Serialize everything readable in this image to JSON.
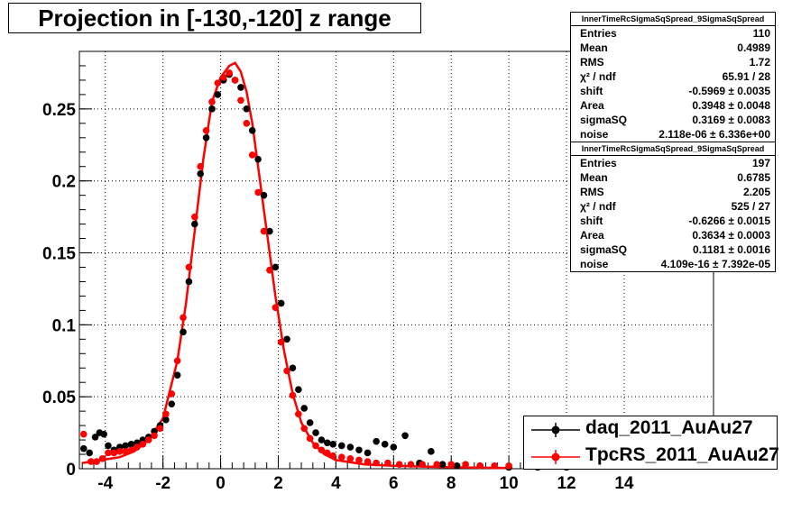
{
  "title": "Projection in [-130,-120] z range",
  "stats": [
    {
      "header": "InnerTimeRcSigmaSqSpread_9SigmaSqSpread",
      "rows": [
        {
          "label": "Entries",
          "value": "110"
        },
        {
          "label": "Mean",
          "value": "0.4989"
        },
        {
          "label": "RMS",
          "value": "1.72"
        },
        {
          "label": "χ² / ndf",
          "value": "65.91 / 28"
        },
        {
          "label": "shift",
          "value": "-0.5969 ± 0.0035"
        },
        {
          "label": "Area",
          "value": "0.3948 ± 0.0048"
        },
        {
          "label": "sigmaSQ",
          "value": "0.3169 ± 0.0083"
        },
        {
          "label": "noise",
          "value": "2.118e-06 ± 6.336e+00"
        }
      ]
    },
    {
      "header": "InnerTimeRcSigmaSqSpread_9SigmaSqSpread",
      "rows": [
        {
          "label": "Entries",
          "value": "197"
        },
        {
          "label": "Mean",
          "value": "0.6785"
        },
        {
          "label": "RMS",
          "value": "2.205"
        },
        {
          "label": "χ² / ndf",
          "value": "525 / 27"
        },
        {
          "label": "shift",
          "value": "-0.6266 ± 0.0015"
        },
        {
          "label": "Area",
          "value": "0.3634 ± 0.0003"
        },
        {
          "label": "sigmaSQ",
          "value": "0.1181 ± 0.0016"
        },
        {
          "label": "noise",
          "value": "4.109e-16 ± 7.392e-05"
        }
      ]
    }
  ],
  "legend": [
    {
      "label": "daq_2011_AuAu27",
      "color": "#000000"
    },
    {
      "label": "TpcRS_2011_AuAu27",
      "color": "#ff0000"
    }
  ],
  "chart_data": {
    "type": "scatter",
    "xlim": [
      -4.9,
      17.1
    ],
    "ylim": [
      0,
      0.29
    ],
    "x_ticks": [
      -4,
      -2,
      0,
      2,
      4,
      6,
      8,
      10,
      12,
      14
    ],
    "x_tick_labels": [
      "-4",
      "-2",
      "0",
      "2",
      "4",
      "6",
      "8",
      "10",
      "12",
      "14"
    ],
    "y_ticks": [
      0,
      0.05,
      0.1,
      0.15,
      0.2,
      0.25
    ],
    "y_tick_labels": [
      "0",
      "0.05",
      "0.1",
      "0.15",
      "0.2",
      "0.25"
    ],
    "grid": true,
    "legend_position": "bottom-right",
    "series": [
      {
        "name": "daq_2011_AuAu27",
        "color": "#000000",
        "points": [
          [
            -4.75,
            0.014
          ],
          [
            -4.55,
            0.011
          ],
          [
            -4.35,
            0.022
          ],
          [
            -4.2,
            0.025
          ],
          [
            -4.05,
            0.024
          ],
          [
            -3.9,
            0.016
          ],
          [
            -3.7,
            0.013
          ],
          [
            -3.5,
            0.015
          ],
          [
            -3.3,
            0.016
          ],
          [
            -3.1,
            0.017
          ],
          [
            -2.9,
            0.018
          ],
          [
            -2.7,
            0.02
          ],
          [
            -2.5,
            0.022
          ],
          [
            -2.3,
            0.026
          ],
          [
            -2.1,
            0.03
          ],
          [
            -1.9,
            0.034
          ],
          [
            -1.7,
            0.045
          ],
          [
            -1.5,
            0.065
          ],
          [
            -1.3,
            0.095
          ],
          [
            -1.1,
            0.13
          ],
          [
            -0.9,
            0.17
          ],
          [
            -0.7,
            0.205
          ],
          [
            -0.5,
            0.23
          ],
          [
            -0.3,
            0.25
          ],
          [
            -0.1,
            0.26
          ],
          [
            0.1,
            0.27
          ],
          [
            0.3,
            0.274
          ],
          [
            0.5,
            0.27
          ],
          [
            0.7,
            0.265
          ],
          [
            0.9,
            0.25
          ],
          [
            1.1,
            0.235
          ],
          [
            1.3,
            0.215
          ],
          [
            1.5,
            0.19
          ],
          [
            1.7,
            0.165
          ],
          [
            1.9,
            0.14
          ],
          [
            2.1,
            0.115
          ],
          [
            2.3,
            0.09
          ],
          [
            2.5,
            0.07
          ],
          [
            2.7,
            0.055
          ],
          [
            2.9,
            0.042
          ],
          [
            3.1,
            0.032
          ],
          [
            3.3,
            0.025
          ],
          [
            3.5,
            0.02
          ],
          [
            3.7,
            0.018
          ],
          [
            3.9,
            0.017
          ],
          [
            4.2,
            0.016
          ],
          [
            4.5,
            0.015
          ],
          [
            4.8,
            0.013
          ],
          [
            5.1,
            0.011
          ],
          [
            5.4,
            0.019
          ],
          [
            5.7,
            0.017
          ],
          [
            6.0,
            0.015
          ],
          [
            6.4,
            0.023
          ],
          [
            6.9,
            0.004
          ],
          [
            7.3,
            0.012
          ],
          [
            7.7,
            0.003
          ],
          [
            8.2,
            0.002
          ],
          [
            9.0,
            0.002
          ],
          [
            10.0,
            0.001
          ],
          [
            11.0,
            0.001
          ],
          [
            12.0,
            0.001
          ]
        ]
      },
      {
        "name": "TpcRS_2011_AuAu27",
        "color": "#ff0000",
        "points": [
          [
            -4.75,
            0.024
          ],
          [
            -4.5,
            0.005
          ],
          [
            -4.3,
            0.005
          ],
          [
            -4.1,
            0.007
          ],
          [
            -3.9,
            0.011
          ],
          [
            -3.7,
            0.011
          ],
          [
            -3.5,
            0.012
          ],
          [
            -3.3,
            0.012
          ],
          [
            -3.1,
            0.013
          ],
          [
            -2.9,
            0.015
          ],
          [
            -2.7,
            0.017
          ],
          [
            -2.5,
            0.02
          ],
          [
            -2.3,
            0.023
          ],
          [
            -2.1,
            0.028
          ],
          [
            -1.9,
            0.038
          ],
          [
            -1.7,
            0.052
          ],
          [
            -1.5,
            0.075
          ],
          [
            -1.3,
            0.105
          ],
          [
            -1.1,
            0.14
          ],
          [
            -0.9,
            0.175
          ],
          [
            -0.7,
            0.21
          ],
          [
            -0.5,
            0.235
          ],
          [
            -0.3,
            0.255
          ],
          [
            -0.1,
            0.268
          ],
          [
            0.1,
            0.272
          ],
          [
            0.3,
            0.275
          ],
          [
            0.5,
            0.27
          ],
          [
            0.7,
            0.256
          ],
          [
            0.9,
            0.24
          ],
          [
            1.1,
            0.218
          ],
          [
            1.3,
            0.192
          ],
          [
            1.5,
            0.165
          ],
          [
            1.7,
            0.138
          ],
          [
            1.9,
            0.112
          ],
          [
            2.1,
            0.088
          ],
          [
            2.3,
            0.068
          ],
          [
            2.5,
            0.051
          ],
          [
            2.7,
            0.038
          ],
          [
            2.9,
            0.028
          ],
          [
            3.1,
            0.021
          ],
          [
            3.3,
            0.016
          ],
          [
            3.5,
            0.013
          ],
          [
            3.7,
            0.011
          ],
          [
            3.9,
            0.009
          ],
          [
            4.2,
            0.008
          ],
          [
            4.5,
            0.007
          ],
          [
            4.8,
            0.006
          ],
          [
            5.1,
            0.005
          ],
          [
            5.4,
            0.004
          ],
          [
            5.8,
            0.004
          ],
          [
            6.2,
            0.003
          ],
          [
            6.6,
            0.003
          ],
          [
            7.0,
            0.003
          ],
          [
            7.5,
            0.003
          ],
          [
            8.0,
            0.003
          ],
          [
            8.5,
            0.003
          ],
          [
            9.0,
            0.002
          ],
          [
            9.5,
            0.002
          ],
          [
            10.0,
            0.002
          ],
          [
            11.0,
            0.002
          ]
        ]
      },
      {
        "name": "",
        "color": "#ff0000",
        "type": "line",
        "points": [
          [
            -4.8,
            0.004
          ],
          [
            -3.5,
            0.008
          ],
          [
            -3.0,
            0.012
          ],
          [
            -2.5,
            0.02
          ],
          [
            -2.0,
            0.035
          ],
          [
            -1.5,
            0.075
          ],
          [
            -1.2,
            0.115
          ],
          [
            -0.9,
            0.165
          ],
          [
            -0.6,
            0.215
          ],
          [
            -0.3,
            0.255
          ],
          [
            0.0,
            0.272
          ],
          [
            0.3,
            0.28
          ],
          [
            0.5,
            0.282
          ],
          [
            0.7,
            0.276
          ],
          [
            0.9,
            0.262
          ],
          [
            1.1,
            0.24
          ],
          [
            1.3,
            0.21
          ],
          [
            1.6,
            0.165
          ],
          [
            1.9,
            0.12
          ],
          [
            2.2,
            0.082
          ],
          [
            2.5,
            0.052
          ],
          [
            2.8,
            0.032
          ],
          [
            3.2,
            0.018
          ],
          [
            3.6,
            0.01
          ],
          [
            4.0,
            0.006
          ],
          [
            5.0,
            0.003
          ],
          [
            6.0,
            0.002
          ],
          [
            8.0,
            0.001
          ],
          [
            10.0,
            0.0005
          ]
        ]
      }
    ]
  }
}
